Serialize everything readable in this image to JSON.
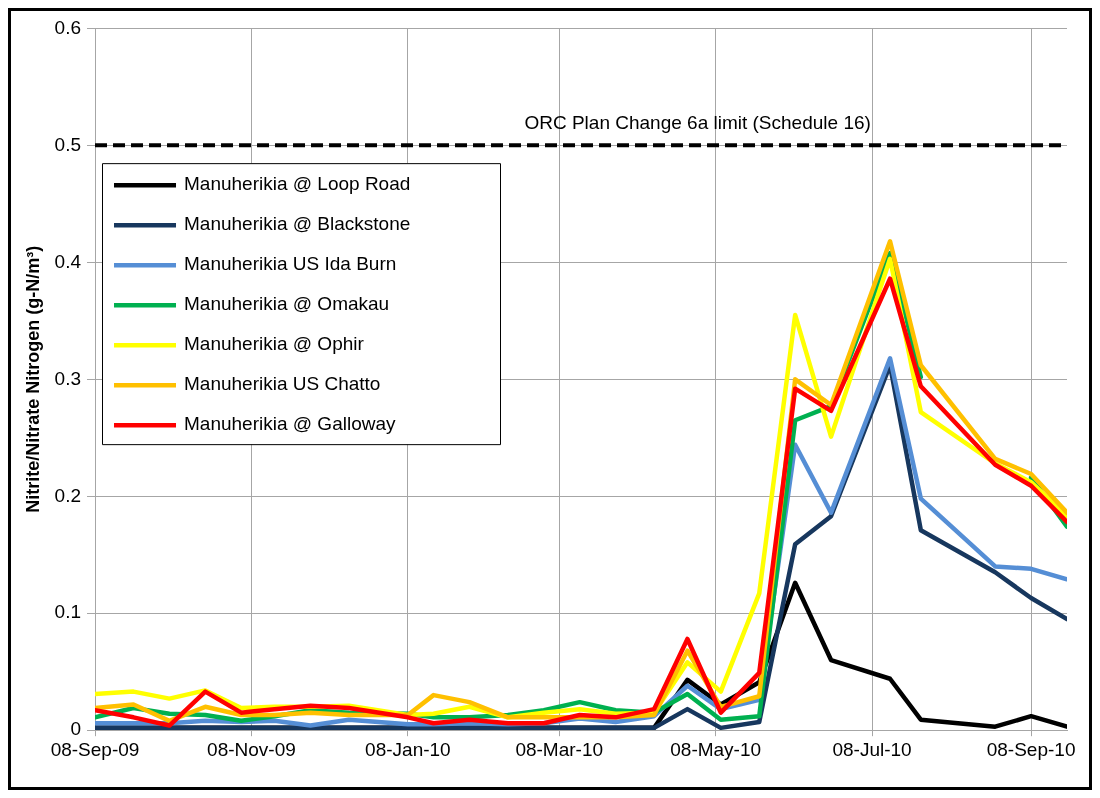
{
  "chart_data": {
    "type": "line",
    "ylabel": "Nitrite/Nitrate Nitrogen (g-N/m³)",
    "x": [
      "2009-09-08",
      "2009-09-23",
      "2009-10-07",
      "2009-10-21",
      "2009-11-04",
      "2009-11-17",
      "2009-12-01",
      "2009-12-16",
      "2010-01-08",
      "2010-01-18",
      "2010-02-01",
      "2010-02-16",
      "2010-03-02",
      "2010-03-16",
      "2010-03-30",
      "2010-04-14",
      "2010-04-27",
      "2010-05-10",
      "2010-05-25",
      "2010-06-08",
      "2010-06-22",
      "2010-07-15",
      "2010-07-27",
      "2010-08-25",
      "2010-09-08",
      "2010-09-22"
    ],
    "series": [
      {
        "name": "Manuherikia @ Loop Road",
        "color": "#000000",
        "values": [
          0.002,
          0.002,
          0.002,
          0.002,
          0.002,
          0.002,
          0.002,
          0.002,
          0.002,
          0.002,
          0.002,
          0.002,
          0.002,
          0.002,
          0.002,
          0.002,
          0.043,
          0.022,
          0.041,
          0.126,
          0.06,
          0.044,
          0.009,
          0.003,
          0.012,
          0.003
        ]
      },
      {
        "name": "Manuherikia @ Blackstone",
        "color": "#17375e",
        "values": [
          0.002,
          0.002,
          0.002,
          0.002,
          0.002,
          0.002,
          0.002,
          0.002,
          0.002,
          0.002,
          0.002,
          0.002,
          0.002,
          0.002,
          0.002,
          0.002,
          0.018,
          0.002,
          0.007,
          0.159,
          0.183,
          0.312,
          0.171,
          0.135,
          0.113,
          0.095
        ]
      },
      {
        "name": "Manuherikia US Ida Burn",
        "color": "#558ed5",
        "values": [
          0.006,
          0.006,
          0.006,
          0.008,
          0.007,
          0.008,
          0.004,
          0.009,
          0.005,
          0.005,
          0.006,
          0.005,
          0.006,
          0.01,
          0.007,
          0.012,
          0.038,
          0.018,
          0.026,
          0.244,
          0.186,
          0.318,
          0.198,
          0.14,
          0.138,
          0.129
        ]
      },
      {
        "name": "Manuherikia @ Omakau",
        "color": "#00b050",
        "values": [
          0.011,
          0.019,
          0.014,
          0.013,
          0.008,
          0.012,
          0.017,
          0.015,
          0.014,
          0.011,
          0.011,
          0.013,
          0.017,
          0.024,
          0.017,
          0.015,
          0.031,
          0.009,
          0.012,
          0.265,
          0.277,
          0.408,
          0.302,
          null,
          0.216,
          0.174
        ]
      },
      {
        "name": "Manuherikia @ Ophir",
        "color": "#ffff00",
        "values": [
          0.031,
          0.033,
          0.027,
          0.034,
          0.019,
          0.02,
          0.02,
          0.021,
          0.013,
          0.014,
          0.02,
          0.011,
          0.015,
          0.018,
          0.014,
          0.015,
          0.058,
          0.033,
          0.117,
          0.355,
          0.251,
          0.403,
          0.272,
          0.228,
          0.212,
          0.183
        ]
      },
      {
        "name": "Manuherikia US Chatto",
        "color": "#ffc000",
        "values": [
          0.019,
          0.022,
          0.008,
          0.02,
          0.013,
          0.013,
          0.015,
          0.013,
          0.013,
          0.03,
          0.024,
          0.011,
          0.011,
          0.011,
          0.011,
          0.013,
          0.068,
          0.02,
          0.029,
          0.3,
          0.278,
          0.418,
          0.312,
          0.232,
          0.219,
          0.186
        ]
      },
      {
        "name": "Manuherikia @ Galloway",
        "color": "#ff0000",
        "values": [
          0.017,
          0.011,
          0.004,
          0.033,
          0.015,
          0.018,
          0.021,
          0.019,
          0.011,
          0.006,
          0.009,
          0.006,
          0.006,
          0.013,
          0.011,
          0.018,
          0.078,
          0.015,
          0.049,
          0.292,
          0.273,
          0.386,
          0.294,
          0.227,
          0.209,
          0.178
        ]
      }
    ],
    "xlim": [
      "2009-09-08",
      "2010-09-22"
    ],
    "xticks": [
      {
        "value": "2009-09-08",
        "label": "08-Sep-09"
      },
      {
        "value": "2009-11-08",
        "label": "08-Nov-09"
      },
      {
        "value": "2010-01-08",
        "label": "08-Jan-10"
      },
      {
        "value": "2010-03-08",
        "label": "08-Mar-10"
      },
      {
        "value": "2010-05-08",
        "label": "08-May-10"
      },
      {
        "value": "2010-07-08",
        "label": "08-Jul-10"
      },
      {
        "value": "2010-09-08",
        "label": "08-Sep-10"
      }
    ],
    "ylim": [
      0,
      0.6
    ],
    "yticks": [
      0,
      0.1,
      0.2,
      0.3,
      0.4,
      0.5,
      0.6
    ],
    "ref_lines": [
      {
        "axis": "y",
        "value": 0.5,
        "label": "ORC Plan Change 6a limit (Schedule 16)",
        "color": "#000000",
        "line_style": "dashed"
      }
    ],
    "grid": true,
    "legend": "top left"
  }
}
